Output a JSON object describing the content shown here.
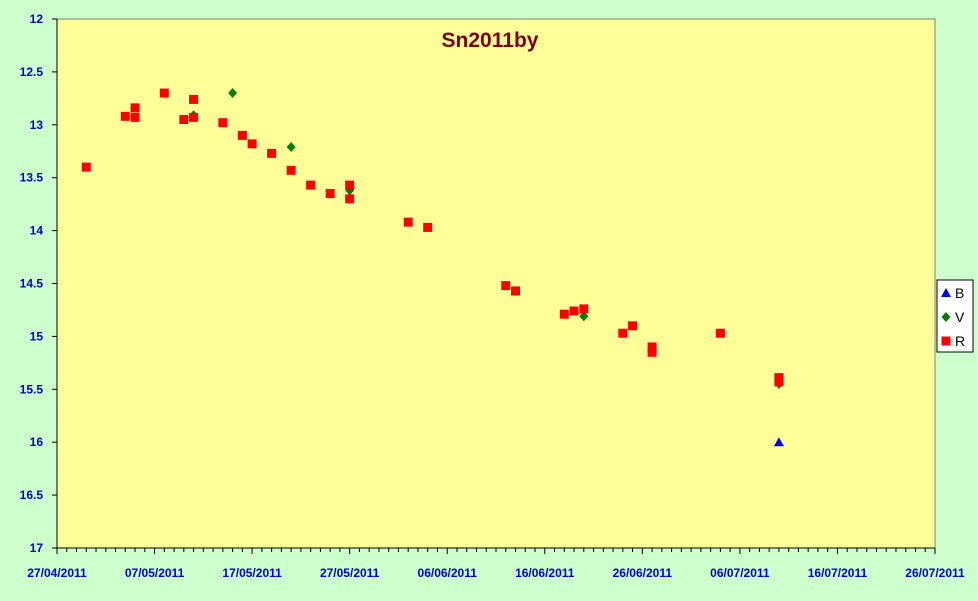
{
  "chart_data": {
    "type": "scatter",
    "title": "Sn2011by",
    "xlabel": "",
    "ylabel": "",
    "x_ticks": [
      "27/04/2011",
      "07/05/2011",
      "17/05/2011",
      "27/05/2011",
      "06/06/2011",
      "16/06/2011",
      "26/06/2011",
      "06/07/2011",
      "16/07/2011",
      "26/07/2011"
    ],
    "xlim": [
      "2011-04-27",
      "2011-07-26"
    ],
    "ylim": [
      12,
      17
    ],
    "y_reversed": true,
    "y_ticks": [
      "12",
      "12.5",
      "13",
      "13.5",
      "14",
      "14.5",
      "15",
      "15.5",
      "16",
      "16.5",
      "17"
    ],
    "plot_background": "#ffff99",
    "page_background": "#ccffcc",
    "grid": false,
    "legend_position": "right",
    "series": [
      {
        "name": "B",
        "marker": "triangle",
        "color": "#0000ff",
        "points": [
          {
            "x": "2011-07-10",
            "y": 16.0
          }
        ]
      },
      {
        "name": "V",
        "marker": "diamond",
        "color": "#008000",
        "points": [
          {
            "x": "2011-05-11",
            "y": 12.91
          },
          {
            "x": "2011-05-15",
            "y": 12.7
          },
          {
            "x": "2011-05-21",
            "y": 13.21
          },
          {
            "x": "2011-05-27",
            "y": 13.62
          },
          {
            "x": "2011-06-20",
            "y": 14.81
          },
          {
            "x": "2011-07-10",
            "y": 15.45
          }
        ]
      },
      {
        "name": "R",
        "marker": "square",
        "color": "#ff0000",
        "points": [
          {
            "x": "2011-04-30",
            "y": 13.4
          },
          {
            "x": "2011-05-04",
            "y": 12.92
          },
          {
            "x": "2011-05-05",
            "y": 12.84
          },
          {
            "x": "2011-05-05",
            "y": 12.93
          },
          {
            "x": "2011-05-08",
            "y": 12.7
          },
          {
            "x": "2011-05-10",
            "y": 12.95
          },
          {
            "x": "2011-05-11",
            "y": 12.76
          },
          {
            "x": "2011-05-11",
            "y": 12.93
          },
          {
            "x": "2011-05-14",
            "y": 12.98
          },
          {
            "x": "2011-05-16",
            "y": 13.1
          },
          {
            "x": "2011-05-17",
            "y": 13.18
          },
          {
            "x": "2011-05-19",
            "y": 13.27
          },
          {
            "x": "2011-05-21",
            "y": 13.43
          },
          {
            "x": "2011-05-23",
            "y": 13.57
          },
          {
            "x": "2011-05-25",
            "y": 13.65
          },
          {
            "x": "2011-05-27",
            "y": 13.57
          },
          {
            "x": "2011-05-27",
            "y": 13.7
          },
          {
            "x": "2011-06-02",
            "y": 13.92
          },
          {
            "x": "2011-06-04",
            "y": 13.97
          },
          {
            "x": "2011-06-12",
            "y": 14.52
          },
          {
            "x": "2011-06-13",
            "y": 14.57
          },
          {
            "x": "2011-06-18",
            "y": 14.79
          },
          {
            "x": "2011-06-19",
            "y": 14.76
          },
          {
            "x": "2011-06-20",
            "y": 14.74
          },
          {
            "x": "2011-06-24",
            "y": 14.97
          },
          {
            "x": "2011-06-25",
            "y": 14.9
          },
          {
            "x": "2011-06-27",
            "y": 15.1
          },
          {
            "x": "2011-06-27",
            "y": 15.15
          },
          {
            "x": "2011-07-04",
            "y": 14.97
          },
          {
            "x": "2011-07-10",
            "y": 15.39
          },
          {
            "x": "2011-07-10",
            "y": 15.43
          }
        ]
      }
    ]
  }
}
